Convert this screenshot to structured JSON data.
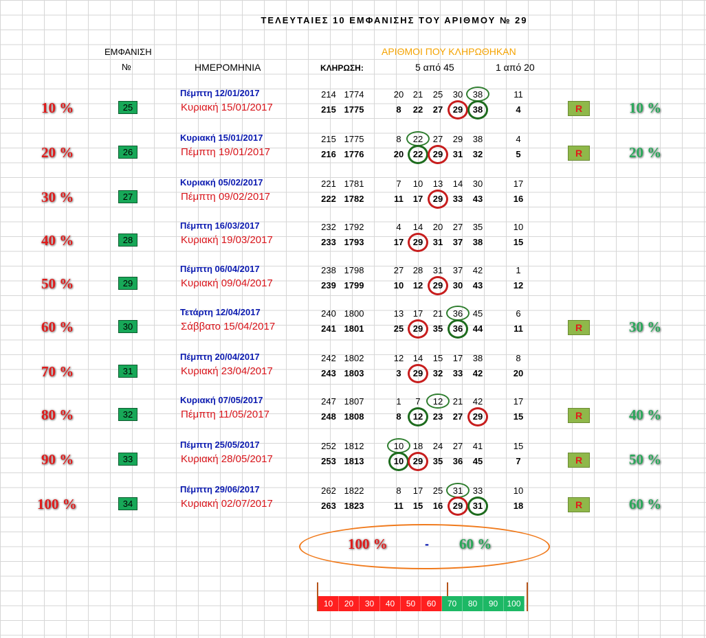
{
  "title": "ΤΕΛΕΥΤΑΙΕΣ 10 ΕΜΦΑΝΙΣΗΣ ΤΟΥ ΑΡΙΘΜΟΥ № 29",
  "headers": {
    "appearance": "ΕΜΦΑΝΙΣΗ",
    "no": "№",
    "date": "ΗΜΕΡΟΜΗΝΙΑ",
    "draw": "ΚΛΗΡΩΣΗ:",
    "drawn_numbers": "ΑΡΙΘΜΟΙ ΠΟΥ ΚΛΗΡΩΘΗΚΑΝ",
    "five_of_45": "5 από 45",
    "one_of_20": "1 από 20"
  },
  "accent_colors": {
    "red": "#e01b1b",
    "green": "#2aa85a",
    "blue": "#0b1ab0",
    "orange": "#f5a300",
    "badge_green": "#17a858"
  },
  "rows": [
    {
      "pct_left": "10 %",
      "badge": "25",
      "prev_date": "Πέμπτη 12/01/2017",
      "prev_a": "214",
      "prev_b": "1774",
      "prev_nums": [
        "20",
        "21",
        "25",
        "30",
        "38"
      ],
      "prev_bonus": "11",
      "date": "Κυριακή 15/01/2017",
      "a": "215",
      "b": "1775",
      "nums": [
        "8",
        "22",
        "27",
        "29",
        "38"
      ],
      "bonus": "4",
      "r": "R",
      "pct_right": "10 %"
    },
    {
      "pct_left": "20 %",
      "badge": "26",
      "prev_date": "Κυριακή 15/01/2017",
      "prev_a": "215",
      "prev_b": "1775",
      "prev_nums": [
        "8",
        "22",
        "27",
        "29",
        "38"
      ],
      "prev_bonus": "4",
      "date": "Πέμπτη 19/01/2017",
      "a": "216",
      "b": "1776",
      "nums": [
        "20",
        "22",
        "29",
        "31",
        "32"
      ],
      "bonus": "5",
      "r": "R",
      "pct_right": "20 %"
    },
    {
      "pct_left": "30 %",
      "badge": "27",
      "prev_date": "Κυριακή 05/02/2017",
      "prev_a": "221",
      "prev_b": "1781",
      "prev_nums": [
        "7",
        "10",
        "13",
        "14",
        "30"
      ],
      "prev_bonus": "17",
      "date": "Πέμπτη 09/02/2017",
      "a": "222",
      "b": "1782",
      "nums": [
        "11",
        "17",
        "29",
        "33",
        "43"
      ],
      "bonus": "16",
      "r": "",
      "pct_right": ""
    },
    {
      "pct_left": "40 %",
      "badge": "28",
      "prev_date": "Πέμπτη 16/03/2017",
      "prev_a": "232",
      "prev_b": "1792",
      "prev_nums": [
        "4",
        "14",
        "20",
        "27",
        "35"
      ],
      "prev_bonus": "10",
      "date": "Κυριακή 19/03/2017",
      "a": "233",
      "b": "1793",
      "nums": [
        "17",
        "29",
        "31",
        "37",
        "38"
      ],
      "bonus": "15",
      "r": "",
      "pct_right": ""
    },
    {
      "pct_left": "50 %",
      "badge": "29",
      "prev_date": "Πέμπτη 06/04/2017",
      "prev_a": "238",
      "prev_b": "1798",
      "prev_nums": [
        "27",
        "28",
        "31",
        "37",
        "42"
      ],
      "prev_bonus": "1",
      "date": "Κυριακή 09/04/2017",
      "a": "239",
      "b": "1799",
      "nums": [
        "10",
        "12",
        "29",
        "30",
        "43"
      ],
      "bonus": "12",
      "r": "",
      "pct_right": ""
    },
    {
      "pct_left": "60 %",
      "badge": "30",
      "prev_date": "Τετάρτη 12/04/2017",
      "prev_a": "240",
      "prev_b": "1800",
      "prev_nums": [
        "13",
        "17",
        "21",
        "36",
        "45"
      ],
      "prev_bonus": "6",
      "date": "Σάββατο 15/04/2017",
      "a": "241",
      "b": "1801",
      "nums": [
        "25",
        "29",
        "35",
        "36",
        "44"
      ],
      "bonus": "11",
      "r": "R",
      "pct_right": "30 %"
    },
    {
      "pct_left": "70 %",
      "badge": "31",
      "prev_date": "Πέμπτη 20/04/2017",
      "prev_a": "242",
      "prev_b": "1802",
      "prev_nums": [
        "12",
        "14",
        "15",
        "17",
        "38"
      ],
      "prev_bonus": "8",
      "date": "Κυριακή 23/04/2017",
      "a": "243",
      "b": "1803",
      "nums": [
        "3",
        "29",
        "32",
        "33",
        "42"
      ],
      "bonus": "20",
      "r": "",
      "pct_right": ""
    },
    {
      "pct_left": "80 %",
      "badge": "32",
      "prev_date": "Κυριακή 07/05/2017",
      "prev_a": "247",
      "prev_b": "1807",
      "prev_nums": [
        "1",
        "7",
        "12",
        "21",
        "42"
      ],
      "prev_bonus": "17",
      "date": "Πέμπτη 11/05/2017",
      "a": "248",
      "b": "1808",
      "nums": [
        "8",
        "12",
        "23",
        "27",
        "29"
      ],
      "bonus": "15",
      "r": "R",
      "pct_right": "40 %"
    },
    {
      "pct_left": "90 %",
      "badge": "33",
      "prev_date": "Πέμπτη 25/05/2017",
      "prev_a": "252",
      "prev_b": "1812",
      "prev_nums": [
        "10",
        "18",
        "24",
        "27",
        "41"
      ],
      "prev_bonus": "15",
      "date": "Κυριακή 28/05/2017",
      "a": "253",
      "b": "1813",
      "nums": [
        "10",
        "29",
        "35",
        "36",
        "45"
      ],
      "bonus": "7",
      "r": "R",
      "pct_right": "50 %"
    },
    {
      "pct_left": "100 %",
      "badge": "34",
      "prev_date": "Πέμπτη 29/06/2017",
      "prev_a": "262",
      "prev_b": "1822",
      "prev_nums": [
        "8",
        "17",
        "25",
        "31",
        "33"
      ],
      "prev_bonus": "10",
      "date": "Κυριακή 02/07/2017",
      "a": "263",
      "b": "1823",
      "nums": [
        "11",
        "15",
        "16",
        "29",
        "31"
      ],
      "bonus": "18",
      "r": "R",
      "pct_right": "60 %"
    }
  ],
  "summary": {
    "left": "100 %",
    "sep": "-",
    "right": "60 %"
  },
  "strip": {
    "red": [
      "10",
      "20",
      "30",
      "40",
      "50",
      "60"
    ],
    "green": [
      "70",
      "80",
      "90",
      "100"
    ]
  }
}
